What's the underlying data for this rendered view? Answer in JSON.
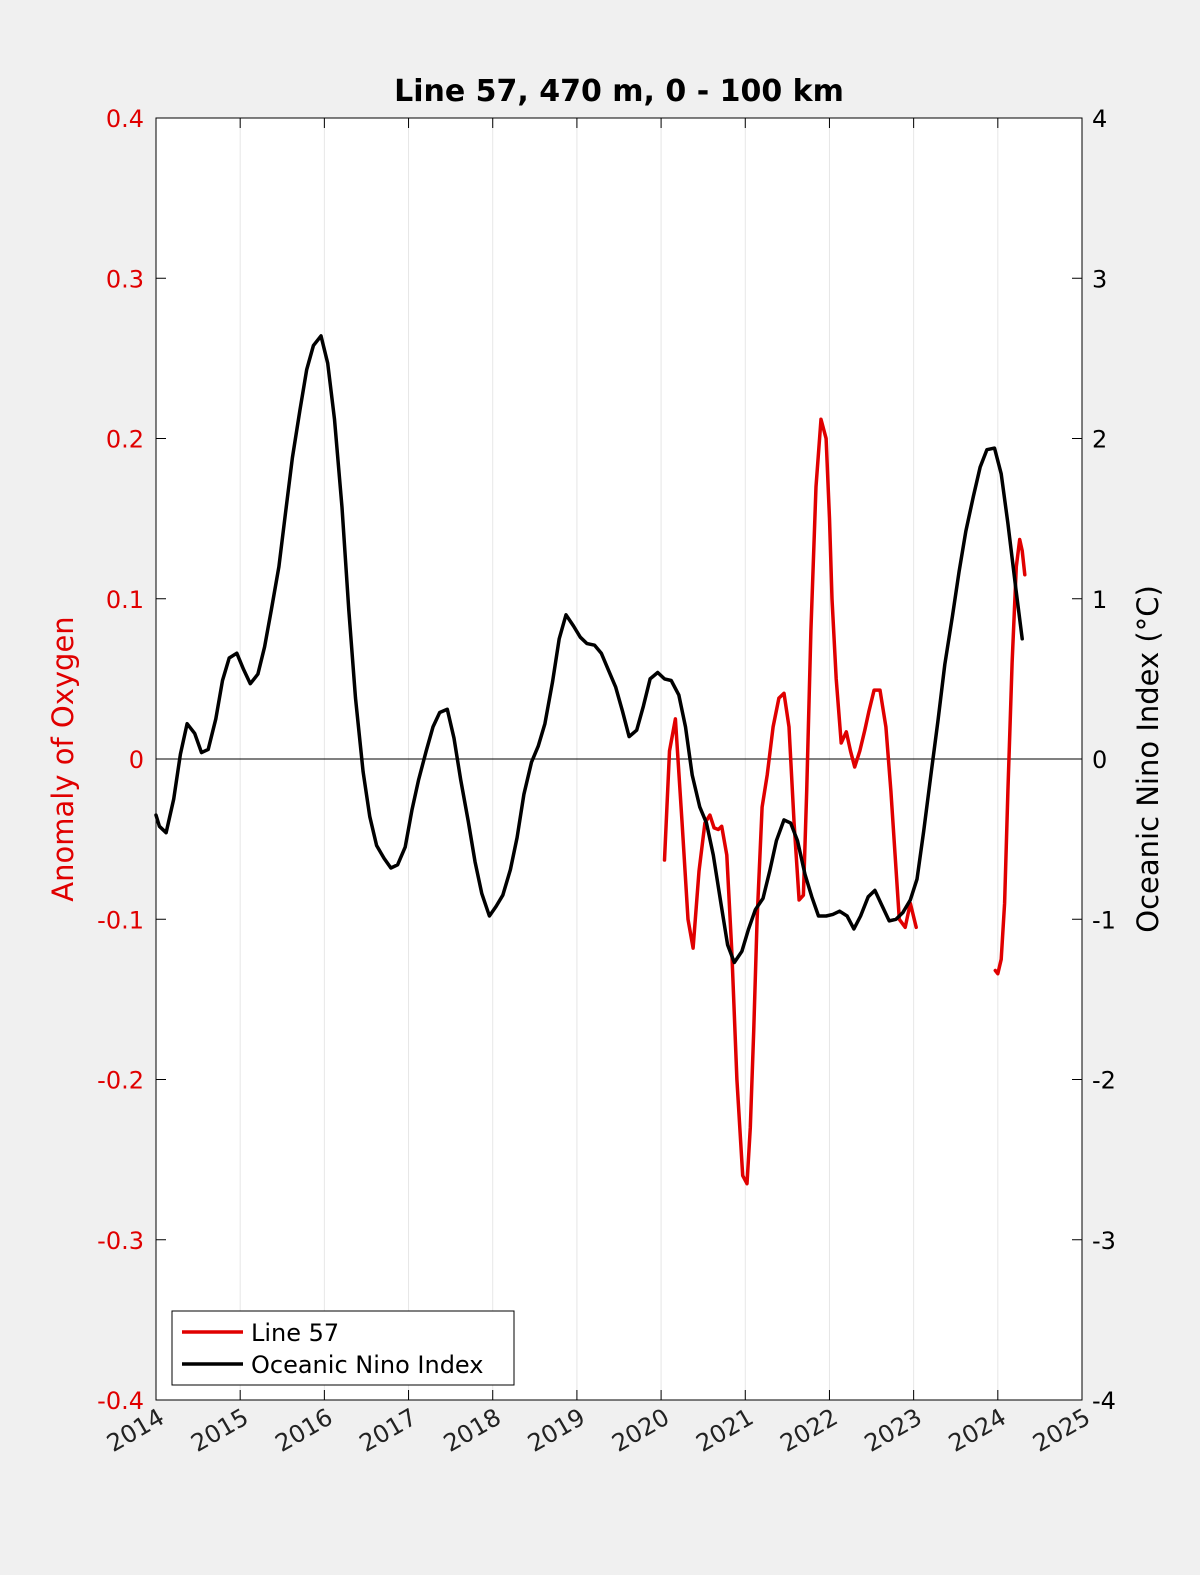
{
  "chart_data": {
    "type": "line",
    "title": "Line 57, 470 m, 0 - 100 km",
    "ylabel_left": "Anomaly of Oxygen",
    "ylabel_right": "Oceanic Nino Index (°C)",
    "xlim": [
      2014,
      2025
    ],
    "ylim_left": [
      -0.4,
      0.4
    ],
    "ylim_right": [
      -4,
      4
    ],
    "x_ticks": [
      "2014",
      "2015",
      "2016",
      "2017",
      "2018",
      "2019",
      "2020",
      "2021",
      "2022",
      "2023",
      "2024",
      "2025"
    ],
    "y_ticks_left": [
      "0.4",
      "0.3",
      "0.2",
      "0.1",
      "0",
      "-0.1",
      "-0.2",
      "-0.3",
      "-0.4"
    ],
    "y_ticks_right": [
      "4",
      "3",
      "2",
      "1",
      "0",
      "-1",
      "-2",
      "-3",
      "-4"
    ],
    "grid": "vertical",
    "zero_line": true,
    "legend": {
      "position": "bottom-left",
      "entries": [
        "Line 57",
        "Oceanic Nino Index"
      ]
    },
    "colors": {
      "line57": "#e00000",
      "oni": "#000000",
      "axis_left": "#e00000"
    },
    "series": [
      {
        "name": "Line 57",
        "axis": "left",
        "segments": [
          {
            "x": [
              2020.04,
              2020.1,
              2020.17,
              2020.25,
              2020.32,
              2020.38,
              2020.45,
              2020.52,
              2020.58,
              2020.63,
              2020.68,
              2020.72,
              2020.78,
              2020.84,
              2020.9,
              2020.97,
              2021.02,
              2021.06,
              2021.1,
              2021.14,
              2021.2,
              2021.26,
              2021.33,
              2021.4,
              2021.46,
              2021.52,
              2021.58,
              2021.64,
              2021.69,
              2021.73,
              2021.78,
              2021.84,
              2021.9,
              2021.96,
              2022.0,
              2022.03,
              2022.08,
              2022.14,
              2022.2,
              2022.25,
              2022.3,
              2022.36,
              2022.42,
              2022.47,
              2022.53,
              2022.6,
              2022.67,
              2022.73,
              2022.78,
              2022.83,
              2022.9,
              2022.96,
              2023.03
            ],
            "y": [
              -0.063,
              0.005,
              0.025,
              -0.04,
              -0.1,
              -0.118,
              -0.07,
              -0.04,
              -0.035,
              -0.043,
              -0.044,
              -0.042,
              -0.06,
              -0.12,
              -0.2,
              -0.26,
              -0.265,
              -0.23,
              -0.17,
              -0.1,
              -0.03,
              -0.01,
              0.02,
              0.038,
              0.041,
              0.02,
              -0.04,
              -0.088,
              -0.085,
              -0.02,
              0.08,
              0.17,
              0.212,
              0.2,
              0.15,
              0.1,
              0.05,
              0.01,
              0.017,
              0.005,
              -0.005,
              0.005,
              0.018,
              0.03,
              0.043,
              0.043,
              0.02,
              -0.02,
              -0.06,
              -0.1,
              -0.105,
              -0.09,
              -0.105
            ]
          },
          {
            "x": [
              2023.97,
              2024.0,
              2024.04,
              2024.08,
              2024.12,
              2024.17,
              2024.22,
              2024.26,
              2024.29,
              2024.32
            ],
            "y": [
              -0.132,
              -0.134,
              -0.125,
              -0.09,
              -0.02,
              0.06,
              0.12,
              0.137,
              0.13,
              0.115
            ]
          }
        ]
      },
      {
        "name": "Oceanic Nino Index",
        "axis": "right",
        "segments": [
          {
            "x": [
              2014.0,
              2014.04,
              2014.12,
              2014.21,
              2014.29,
              2014.37,
              2014.46,
              2014.54,
              2014.62,
              2014.71,
              2014.79,
              2014.87,
              2014.96,
              2015.04,
              2015.12,
              2015.21,
              2015.29,
              2015.37,
              2015.46,
              2015.54,
              2015.62,
              2015.71,
              2015.79,
              2015.87,
              2015.96,
              2016.04,
              2016.12,
              2016.21,
              2016.29,
              2016.37,
              2016.46,
              2016.54,
              2016.62,
              2016.71,
              2016.79,
              2016.87,
              2016.96,
              2017.04,
              2017.12,
              2017.21,
              2017.29,
              2017.37,
              2017.46,
              2017.54,
              2017.62,
              2017.71,
              2017.79,
              2017.87,
              2017.96,
              2018.04,
              2018.12,
              2018.21,
              2018.29,
              2018.37,
              2018.46,
              2018.54,
              2018.62,
              2018.71,
              2018.79,
              2018.87,
              2018.96,
              2019.04,
              2019.12,
              2019.21,
              2019.29,
              2019.37,
              2019.46,
              2019.54,
              2019.62,
              2019.71,
              2019.79,
              2019.87,
              2019.96,
              2020.04,
              2020.12,
              2020.21,
              2020.29,
              2020.37,
              2020.46,
              2020.54,
              2020.62,
              2020.71,
              2020.79,
              2020.87,
              2020.96,
              2021.04,
              2021.12,
              2021.21,
              2021.29,
              2021.37,
              2021.46,
              2021.54,
              2021.62,
              2021.71,
              2021.79,
              2021.87,
              2021.96,
              2022.04,
              2022.12,
              2022.21,
              2022.29,
              2022.37,
              2022.46,
              2022.54,
              2022.62,
              2022.71,
              2022.79,
              2022.87,
              2022.96,
              2023.04,
              2023.12,
              2023.21,
              2023.29,
              2023.37,
              2023.46,
              2023.54,
              2023.62,
              2023.71,
              2023.79,
              2023.87,
              2023.96,
              2024.04,
              2024.12,
              2024.21,
              2024.29
            ],
            "y": [
              -0.35,
              -0.42,
              -0.46,
              -0.25,
              0.03,
              0.22,
              0.16,
              0.04,
              0.06,
              0.25,
              0.49,
              0.63,
              0.66,
              0.56,
              0.47,
              0.53,
              0.7,
              0.93,
              1.2,
              1.54,
              1.88,
              2.18,
              2.43,
              2.58,
              2.64,
              2.47,
              2.12,
              1.57,
              0.93,
              0.38,
              -0.08,
              -0.36,
              -0.54,
              -0.62,
              -0.68,
              -0.66,
              -0.55,
              -0.32,
              -0.13,
              0.05,
              0.2,
              0.29,
              0.31,
              0.13,
              -0.13,
              -0.39,
              -0.64,
              -0.84,
              -0.98,
              -0.92,
              -0.85,
              -0.69,
              -0.49,
              -0.22,
              -0.02,
              0.08,
              0.22,
              0.48,
              0.75,
              0.9,
              0.83,
              0.76,
              0.72,
              0.71,
              0.66,
              0.56,
              0.45,
              0.3,
              0.14,
              0.18,
              0.33,
              0.5,
              0.54,
              0.5,
              0.49,
              0.4,
              0.2,
              -0.1,
              -0.3,
              -0.4,
              -0.6,
              -0.9,
              -1.16,
              -1.27,
              -1.2,
              -1.06,
              -0.94,
              -0.87,
              -0.7,
              -0.51,
              -0.38,
              -0.4,
              -0.51,
              -0.72,
              -0.86,
              -0.98,
              -0.98,
              -0.97,
              -0.95,
              -0.98,
              -1.06,
              -0.98,
              -0.86,
              -0.82,
              -0.91,
              -1.01,
              -1.0,
              -0.96,
              -0.88,
              -0.75,
              -0.45,
              -0.08,
              0.24,
              0.59,
              0.89,
              1.17,
              1.42,
              1.64,
              1.82,
              1.93,
              1.94,
              1.78,
              1.47,
              1.08,
              0.75
            ]
          }
        ]
      }
    ]
  }
}
